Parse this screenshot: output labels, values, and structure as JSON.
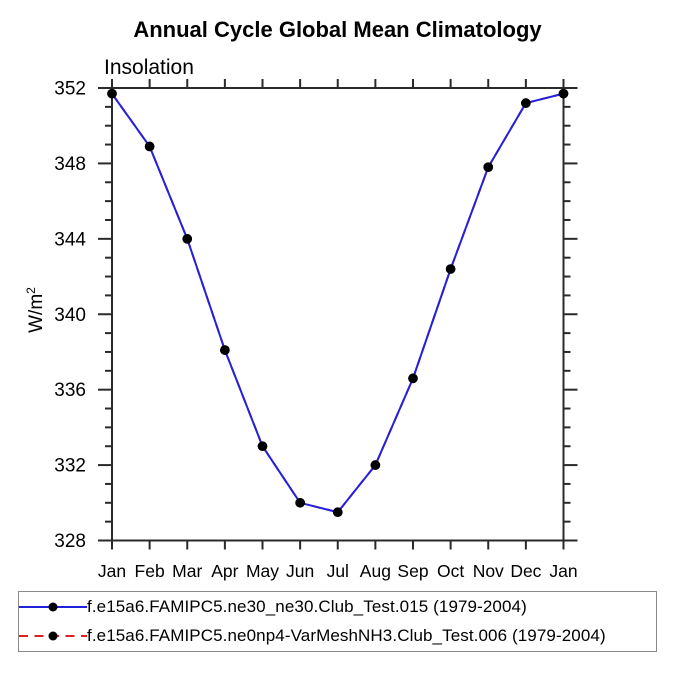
{
  "chart_data": {
    "type": "line",
    "title": "Annual Cycle Global Mean Climatology",
    "left_axis_heading": "Insolation",
    "ylabel_base": "W/m",
    "ylabel_exp": "2",
    "categories": [
      "Jan",
      "Feb",
      "Mar",
      "Apr",
      "May",
      "Jun",
      "Jul",
      "Aug",
      "Sep",
      "Oct",
      "Nov",
      "Dec",
      "Jan"
    ],
    "ylim": [
      328,
      352
    ],
    "ytick_major_step": 4,
    "ytick_minor_step": 1,
    "grid": false,
    "legend_position": "bottom",
    "series": [
      {
        "name": "f.e15a6.FAMIPC5.ne30_ne30.Club_Test.015 (1979-2004)",
        "color": "#2222dd",
        "line_style": "solid",
        "marker": "filled-circle",
        "marker_color": "#000000",
        "values": [
          351.7,
          348.9,
          344.0,
          338.1,
          333.0,
          330.0,
          329.5,
          332.0,
          336.6,
          342.4,
          347.8,
          351.2,
          351.7
        ]
      },
      {
        "name": "f.e15a6.FAMIPC5.ne0np4-VarMeshNH3.Club_Test.006 (1979-2004)",
        "color": "#e02020",
        "line_style": "dashed",
        "marker": "filled-circle",
        "marker_color": "#000000",
        "values": [
          351.7,
          348.9,
          344.0,
          338.1,
          333.0,
          330.0,
          329.5,
          332.0,
          336.6,
          342.4,
          347.8,
          351.2,
          351.7
        ]
      }
    ]
  },
  "colors": {
    "axis": "#2a2a2a",
    "text": "#000000",
    "background": "#ffffff",
    "legend_border": "#8a8a8a"
  }
}
